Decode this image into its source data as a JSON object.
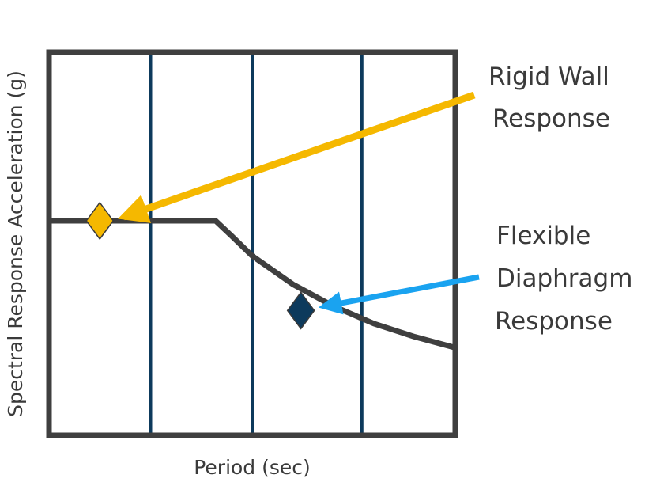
{
  "chart_data": {
    "type": "line",
    "title": "",
    "xlabel": "Period (sec)",
    "ylabel": "Spectral Response Acceleration (g)",
    "grid": false,
    "series": [
      {
        "values_description": "",
        "x": [
          0,
          0.41,
          0.45,
          0.5,
          0.6,
          0.7,
          0.8,
          0.9,
          1.0
        ],
        "y": [
          0.98,
          0.98,
          0.91,
          0.82,
          0.69,
          0.59,
          0.51,
          0.45,
          0.4
        ]
      }
    ],
    "xlim": [
      0,
      1
    ],
    "ylim": [
      0,
      1.75
    ],
    "vertical_lines": [
      0.25,
      0.5,
      0.77
    ],
    "markers": [
      {
        "name": "rigid-wall",
        "x": 0.125,
        "y": 0.98,
        "color": "#f5b800"
      },
      {
        "name": "flexible-diaphragm",
        "x": 0.62,
        "y": 0.57,
        "color": "#0d3a5c"
      }
    ],
    "annotations": [
      {
        "name": "rigid-wall",
        "lines": [
          "Rigid Wall",
          "Response"
        ],
        "arrow_color": "#f5b800",
        "target": "rigid-wall"
      },
      {
        "name": "flexible-diaphragm",
        "lines": [
          "Flexible",
          "Diaphragm",
          "Response"
        ],
        "arrow_color": "#1aa3f0",
        "target": "flexible-diaphragm"
      }
    ]
  },
  "colors": {
    "frame": "#3f3f3f",
    "curve": "#3f3f3f",
    "vertical_lines": "#0d3a5c",
    "text": "#3a3a3a"
  }
}
